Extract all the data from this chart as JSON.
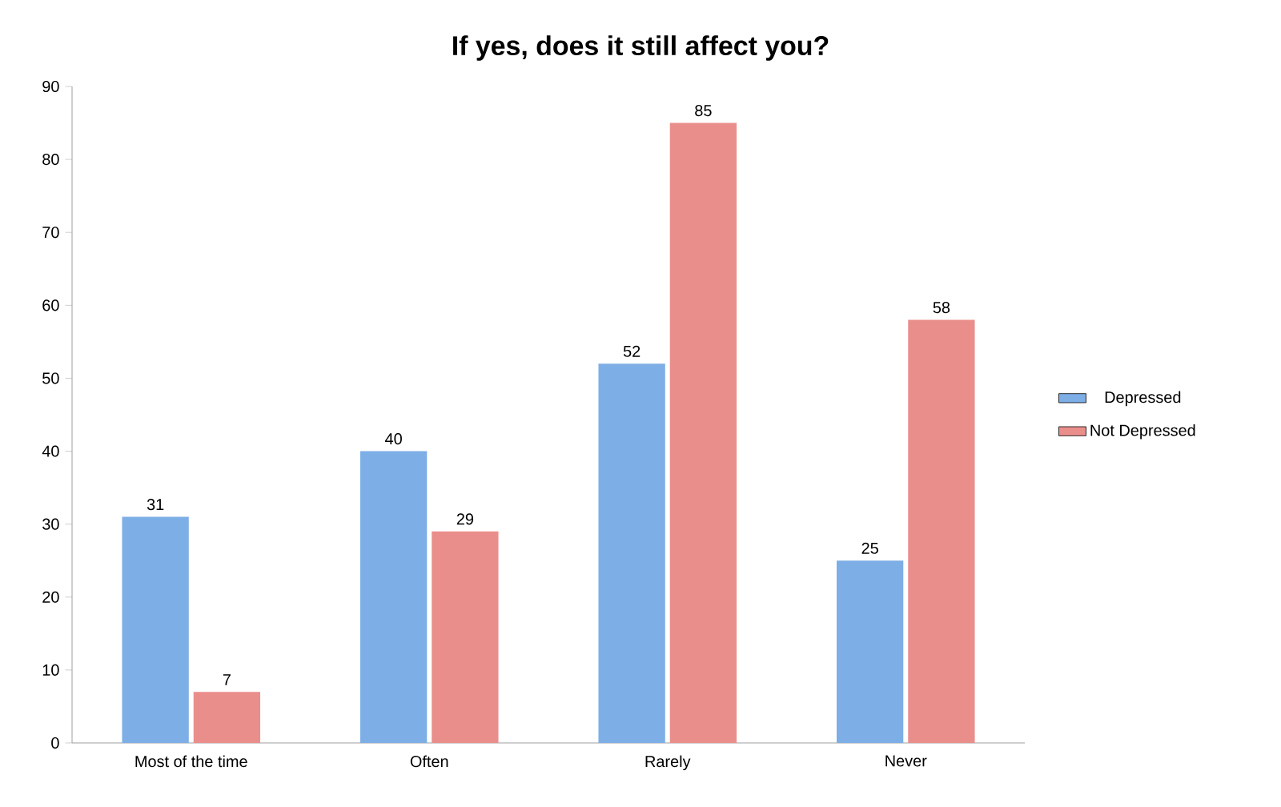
{
  "chart_data": {
    "type": "bar",
    "title": "If yes, does it still affect you?",
    "categories": [
      "Most of the time",
      "Often",
      "Rarely",
      "Never"
    ],
    "series": [
      {
        "name": "Depressed",
        "color": "#7eaee6",
        "values": [
          31,
          40,
          52,
          25
        ]
      },
      {
        "name": "Not Depressed",
        "color": "#ea8e8c",
        "values": [
          7,
          29,
          85,
          58
        ]
      }
    ],
    "ylim": [
      0,
      90
    ],
    "yticks": [
      0,
      10,
      20,
      30,
      40,
      50,
      60,
      70,
      80,
      90
    ],
    "grid": false,
    "legend": "right",
    "data_labels": true
  }
}
